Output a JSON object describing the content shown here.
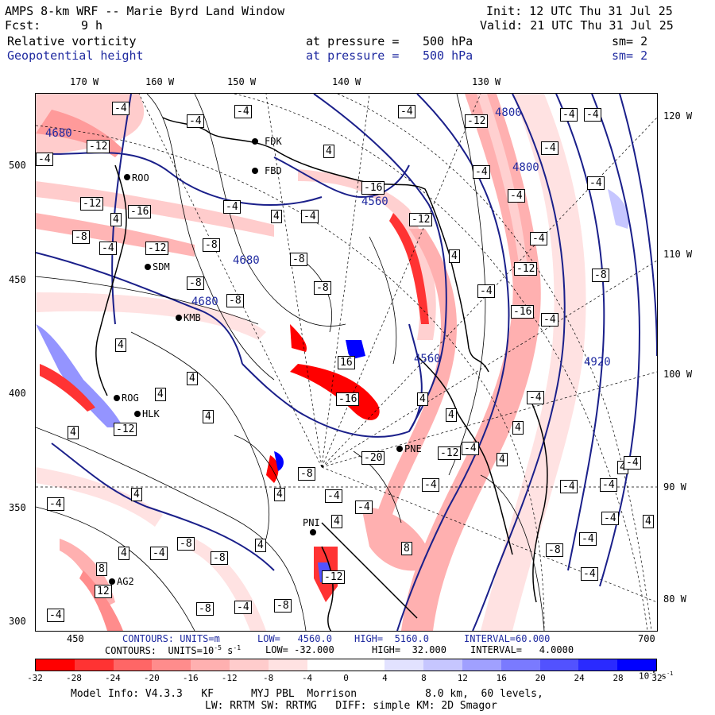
{
  "header": {
    "title": "AMPS 8-km WRF -- Marie Byrd Land Window",
    "init": "Init: 12 UTC Thu 31 Jul 25",
    "fcst_label": "Fcst:",
    "fcst_value": "9 h",
    "valid": "Valid: 21 UTC Thu 31 Jul 25"
  },
  "fields": [
    {
      "name": "Relative vorticity",
      "pressure_label": "at pressure =",
      "pressure": "500 hPa",
      "sm": "sm= 2",
      "color": "#000000"
    },
    {
      "name": "Geopotential height",
      "pressure_label": "at pressure =",
      "pressure": "500 hPa",
      "sm": "sm= 2",
      "color": "#1f2aa0"
    }
  ],
  "axes": {
    "top_lon": [
      "170 W",
      "160 W",
      "150 W",
      "140 W",
      "130 W"
    ],
    "right_lon": [
      "120 W",
      "110 W",
      "100 W",
      "90 W",
      "80 W"
    ],
    "left_y": [
      "500",
      "450",
      "400",
      "350",
      "300"
    ],
    "bottom_x": [
      "450",
      "700"
    ]
  },
  "stations": [
    "FDK",
    "FBD",
    "ROO",
    "SDM",
    "KMB",
    "ROG",
    "HLK",
    "PNE",
    "PNI",
    "AG2"
  ],
  "height_contours": [
    "4680",
    "4560",
    "4800",
    "4920",
    "4800",
    "4680",
    "4680",
    "4560"
  ],
  "vorticity_labels": [
    "-8",
    "-4",
    "4",
    "-12",
    "-16",
    "8",
    "-20",
    "16",
    "12"
  ],
  "contours_line_height": {
    "label": "CONTOURS:",
    "units": "UNITS=m",
    "low": "LOW=   4560.0",
    "high": "HIGH=  5160.0",
    "interval": "INTERVAL=60.000"
  },
  "contours_line_vort": {
    "label": "CONTOURS:",
    "units": "UNITS=10",
    "units_exp": "-5",
    "units_tail": " s",
    "units_tail_exp": "-1",
    "low": "LOW= -32.000",
    "high": "HIGH=  32.000",
    "interval": "INTERVAL=   4.0000"
  },
  "colorbar": {
    "colors": [
      "#ff0000",
      "#ff3333",
      "#ff6666",
      "#ff8c8c",
      "#ffb0b0",
      "#ffcccc",
      "#ffe2e2",
      "#ffffff",
      "#ffffff",
      "#e2e2ff",
      "#c6c6ff",
      "#a0a0ff",
      "#7a7aff",
      "#5252ff",
      "#2a2aff",
      "#0000ff"
    ],
    "ticks": [
      "-32",
      "-28",
      "-24",
      "-20",
      "-16",
      "-12",
      "-8",
      "-4",
      "0",
      "4",
      "8",
      "12",
      "16",
      "20",
      "24",
      "28",
      "32"
    ],
    "unit": "10",
    "unit_exp": "-5",
    "unit_tail": " s",
    "unit_tail_exp": "-1"
  },
  "footer": {
    "line1": "Model Info: V4.3.3   KF      MYJ PBL  Morrison           8.0 km,  60 levels,",
    "line2": "LW: RRTM SW: RRTMG   DIFF: simple KM: 2D Smagor"
  }
}
